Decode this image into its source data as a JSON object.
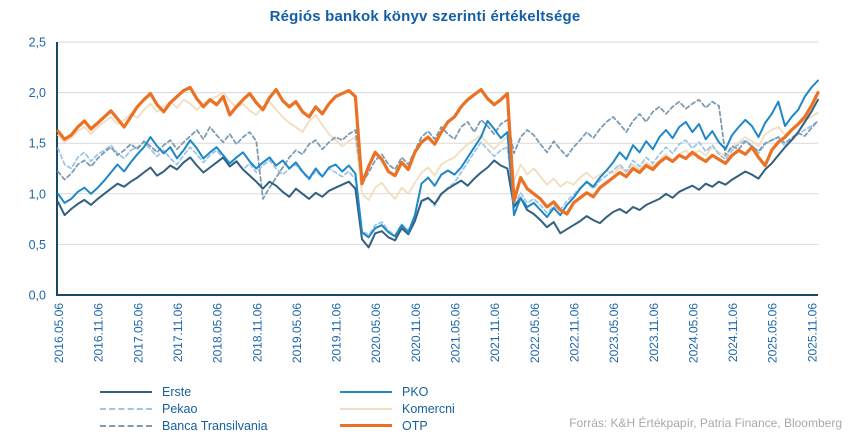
{
  "title": "Régiós bankok könyv szerinti értékeltsége",
  "source": "Forrás: K&H Értékpapír, Patria Finance, Bloomberg",
  "legend": {
    "columns": [
      [
        "Erste",
        "Pekao",
        "Banca Transilvania"
      ],
      [
        "PKO",
        "Komercni",
        "OTP"
      ]
    ]
  },
  "chart_data": {
    "type": "line",
    "title": "Régiós bankok könyv szerinti értékeltsége",
    "xlabel": "",
    "ylabel": "",
    "ylim": [
      0,
      2.5
    ],
    "grid": "horizontal",
    "grid_color": "#D9D9D9",
    "axis_color": "#1B4865",
    "tick_label_color": "#1E66A8",
    "legend_position": "bottom-left",
    "x_unit": "monthly values, 2016-05 through 2025-12",
    "y_ticks": [
      {
        "v": 0.0,
        "label": "0,0"
      },
      {
        "v": 0.5,
        "label": "0,5"
      },
      {
        "v": 1.0,
        "label": "1,0"
      },
      {
        "v": 1.5,
        "label": "1,5"
      },
      {
        "v": 2.0,
        "label": "2,0"
      },
      {
        "v": 2.5,
        "label": "2,5"
      }
    ],
    "x_tick_interval_months": 6,
    "x_tick_labels": [
      "2016.05.06",
      "2016.11.06",
      "2017.05.06",
      "2017.11.06",
      "2018.05.06",
      "2018.11.06",
      "2019.05.06",
      "2019.11.06",
      "2020.05.06",
      "2020.11.06",
      "2021.05.06",
      "2021.11.06",
      "2022.05.06",
      "2022.11.06",
      "2023.05.06",
      "2023.11.06",
      "2024.05.06",
      "2024.11.06",
      "2025.05.06",
      "2025.11.06"
    ],
    "draw_order": [
      4,
      1,
      2,
      0,
      3,
      5
    ],
    "series": [
      {
        "name": "Erste",
        "color": "#33607F",
        "style": "solid",
        "width": 2,
        "values": [
          0.92,
          0.79,
          0.85,
          0.9,
          0.94,
          0.89,
          0.95,
          1.0,
          1.05,
          1.1,
          1.07,
          1.12,
          1.16,
          1.21,
          1.26,
          1.18,
          1.22,
          1.28,
          1.24,
          1.31,
          1.36,
          1.28,
          1.21,
          1.26,
          1.31,
          1.36,
          1.27,
          1.32,
          1.24,
          1.18,
          1.12,
          1.05,
          1.12,
          1.08,
          1.02,
          0.97,
          1.05,
          1.0,
          0.95,
          1.01,
          0.97,
          1.03,
          1.06,
          1.09,
          1.12,
          1.05,
          0.55,
          0.47,
          0.61,
          0.63,
          0.57,
          0.54,
          0.66,
          0.6,
          0.73,
          0.93,
          0.96,
          0.9,
          1.0,
          1.05,
          1.09,
          1.13,
          1.08,
          1.15,
          1.21,
          1.26,
          1.33,
          1.28,
          1.25,
          0.87,
          0.96,
          0.84,
          0.8,
          0.74,
          0.67,
          0.72,
          0.61,
          0.65,
          0.69,
          0.73,
          0.78,
          0.74,
          0.71,
          0.77,
          0.82,
          0.85,
          0.81,
          0.87,
          0.84,
          0.89,
          0.92,
          0.95,
          1.0,
          0.96,
          1.02,
          1.05,
          1.08,
          1.04,
          1.1,
          1.07,
          1.12,
          1.09,
          1.14,
          1.18,
          1.22,
          1.19,
          1.15,
          1.24,
          1.3,
          1.38,
          1.46,
          1.53,
          1.61,
          1.71,
          1.81,
          1.93
        ]
      },
      {
        "name": "Pekao",
        "color": "#9EC6E6",
        "style": "dashed",
        "width": 1.8,
        "values": [
          1.45,
          1.29,
          1.25,
          1.36,
          1.41,
          1.32,
          1.39,
          1.43,
          1.48,
          1.4,
          1.35,
          1.43,
          1.46,
          1.51,
          1.44,
          1.37,
          1.43,
          1.35,
          1.29,
          1.38,
          1.46,
          1.39,
          1.31,
          1.38,
          1.43,
          1.35,
          1.27,
          1.33,
          1.24,
          1.3,
          1.21,
          1.28,
          1.33,
          1.25,
          1.19,
          1.25,
          1.29,
          1.21,
          1.14,
          1.22,
          1.17,
          1.25,
          1.21,
          1.17,
          1.22,
          1.14,
          0.64,
          0.59,
          0.69,
          0.72,
          0.64,
          0.59,
          0.7,
          0.64,
          0.76,
          0.91,
          0.96,
          0.88,
          0.99,
          1.06,
          1.11,
          1.21,
          1.31,
          1.41,
          1.51,
          1.44,
          1.37,
          1.43,
          1.46,
          0.89,
          1.01,
          0.91,
          0.95,
          0.89,
          0.81,
          0.88,
          0.84,
          0.93,
          0.99,
          1.06,
          1.11,
          1.05,
          1.13,
          1.18,
          1.23,
          1.29,
          1.22,
          1.33,
          1.27,
          1.36,
          1.3,
          1.39,
          1.46,
          1.4,
          1.49,
          1.53,
          1.45,
          1.51,
          1.42,
          1.48,
          1.39,
          1.34,
          1.43,
          1.49,
          1.53,
          1.48,
          1.4,
          1.49,
          1.53,
          1.56,
          1.47,
          1.53,
          1.59,
          1.63,
          1.67,
          1.72
        ]
      },
      {
        "name": "Banca Transilvania",
        "color": "#7D9CB4",
        "style": "dashed",
        "width": 1.8,
        "values": [
          1.22,
          1.14,
          1.2,
          1.29,
          1.33,
          1.27,
          1.35,
          1.41,
          1.46,
          1.38,
          1.43,
          1.49,
          1.44,
          1.52,
          1.47,
          1.41,
          1.48,
          1.53,
          1.44,
          1.51,
          1.57,
          1.63,
          1.54,
          1.66,
          1.58,
          1.51,
          1.59,
          1.49,
          1.56,
          1.61,
          1.52,
          0.95,
          1.06,
          1.16,
          1.26,
          1.36,
          1.43,
          1.39,
          1.49,
          1.53,
          1.44,
          1.51,
          1.56,
          1.53,
          1.59,
          1.63,
          1.1,
          1.21,
          1.33,
          1.39,
          1.29,
          1.24,
          1.36,
          1.29,
          1.43,
          1.56,
          1.62,
          1.54,
          1.66,
          1.59,
          1.54,
          1.66,
          1.71,
          1.61,
          1.73,
          1.67,
          1.59,
          1.69,
          1.73,
          1.4,
          1.56,
          1.63,
          1.58,
          1.49,
          1.41,
          1.52,
          1.44,
          1.37,
          1.46,
          1.53,
          1.61,
          1.55,
          1.64,
          1.71,
          1.76,
          1.69,
          1.61,
          1.72,
          1.79,
          1.71,
          1.81,
          1.86,
          1.79,
          1.86,
          1.91,
          1.84,
          1.89,
          1.93,
          1.85,
          1.91,
          1.87,
          1.38,
          1.47,
          1.44,
          1.52,
          1.47,
          1.42,
          1.5,
          1.53,
          1.56,
          1.5,
          1.55,
          1.6,
          1.57,
          1.65,
          1.72
        ]
      },
      {
        "name": "PKO",
        "color": "#1E88C7",
        "style": "solid",
        "width": 2,
        "values": [
          1.0,
          0.91,
          0.95,
          1.02,
          1.06,
          1.0,
          1.06,
          1.13,
          1.21,
          1.29,
          1.22,
          1.31,
          1.39,
          1.46,
          1.56,
          1.47,
          1.4,
          1.46,
          1.35,
          1.43,
          1.53,
          1.45,
          1.35,
          1.41,
          1.46,
          1.38,
          1.3,
          1.36,
          1.41,
          1.32,
          1.25,
          1.31,
          1.36,
          1.28,
          1.33,
          1.25,
          1.31,
          1.22,
          1.15,
          1.25,
          1.17,
          1.26,
          1.29,
          1.22,
          1.28,
          1.2,
          0.62,
          0.57,
          0.66,
          0.69,
          0.62,
          0.58,
          0.69,
          0.62,
          0.79,
          1.1,
          1.16,
          1.08,
          1.19,
          1.23,
          1.19,
          1.26,
          1.36,
          1.46,
          1.56,
          1.72,
          1.64,
          1.55,
          1.61,
          0.79,
          0.96,
          0.87,
          0.91,
          0.84,
          0.77,
          0.86,
          0.79,
          0.89,
          0.96,
          1.05,
          1.12,
          1.07,
          1.16,
          1.23,
          1.31,
          1.41,
          1.34,
          1.48,
          1.41,
          1.52,
          1.44,
          1.56,
          1.63,
          1.55,
          1.66,
          1.71,
          1.61,
          1.69,
          1.54,
          1.62,
          1.51,
          1.44,
          1.58,
          1.66,
          1.73,
          1.67,
          1.56,
          1.7,
          1.79,
          1.91,
          1.67,
          1.76,
          1.83,
          1.96,
          2.05,
          2.12
        ]
      },
      {
        "name": "Komercni",
        "color": "#F3DDC0",
        "style": "solid",
        "width": 1.8,
        "values": [
          1.58,
          1.51,
          1.55,
          1.62,
          1.66,
          1.59,
          1.66,
          1.71,
          1.76,
          1.69,
          1.73,
          1.79,
          1.75,
          1.83,
          1.89,
          1.81,
          1.86,
          1.91,
          1.85,
          1.93,
          1.89,
          1.83,
          1.89,
          1.93,
          1.96,
          2.0,
          1.92,
          1.85,
          1.89,
          1.82,
          1.78,
          1.86,
          1.91,
          1.83,
          1.76,
          1.7,
          1.66,
          1.61,
          1.72,
          1.78,
          1.68,
          1.59,
          1.53,
          1.47,
          1.52,
          1.56,
          1.0,
          0.94,
          1.06,
          1.11,
          1.02,
          0.95,
          1.06,
          1.0,
          1.11,
          1.21,
          1.26,
          1.18,
          1.29,
          1.33,
          1.36,
          1.43,
          1.49,
          1.53,
          1.58,
          1.5,
          1.44,
          1.51,
          1.56,
          1.13,
          1.29,
          1.19,
          1.25,
          1.17,
          1.09,
          1.15,
          1.07,
          1.12,
          1.09,
          1.16,
          1.21,
          1.15,
          1.19,
          1.23,
          1.2,
          1.26,
          1.21,
          1.29,
          1.24,
          1.31,
          1.27,
          1.33,
          1.39,
          1.32,
          1.39,
          1.43,
          1.37,
          1.43,
          1.38,
          1.46,
          1.41,
          1.37,
          1.46,
          1.51,
          1.56,
          1.52,
          1.47,
          1.59,
          1.63,
          1.66,
          1.58,
          1.63,
          1.69,
          1.73,
          1.76,
          1.8
        ]
      },
      {
        "name": "OTP",
        "color": "#EB7125",
        "style": "solid",
        "width": 3.2,
        "values": [
          1.62,
          1.54,
          1.58,
          1.66,
          1.72,
          1.64,
          1.7,
          1.76,
          1.82,
          1.74,
          1.66,
          1.76,
          1.86,
          1.93,
          1.99,
          1.88,
          1.81,
          1.9,
          1.96,
          2.02,
          2.05,
          1.94,
          1.86,
          1.93,
          1.88,
          1.96,
          1.78,
          1.86,
          1.93,
          1.99,
          1.9,
          1.83,
          1.95,
          2.03,
          1.92,
          1.86,
          1.91,
          1.81,
          1.76,
          1.86,
          1.79,
          1.89,
          1.96,
          1.99,
          2.02,
          1.96,
          1.1,
          1.27,
          1.41,
          1.34,
          1.22,
          1.18,
          1.31,
          1.24,
          1.41,
          1.51,
          1.56,
          1.49,
          1.61,
          1.71,
          1.76,
          1.86,
          1.93,
          1.98,
          2.03,
          1.94,
          1.88,
          1.93,
          1.99,
          0.93,
          1.16,
          1.05,
          1.0,
          0.95,
          0.87,
          0.92,
          0.84,
          0.8,
          0.91,
          0.96,
          1.01,
          0.97,
          1.06,
          1.11,
          1.16,
          1.21,
          1.17,
          1.25,
          1.21,
          1.28,
          1.24,
          1.31,
          1.36,
          1.32,
          1.38,
          1.35,
          1.41,
          1.36,
          1.32,
          1.38,
          1.34,
          1.3,
          1.38,
          1.43,
          1.39,
          1.46,
          1.36,
          1.28,
          1.43,
          1.51,
          1.56,
          1.63,
          1.69,
          1.76,
          1.87,
          2.0
        ]
      }
    ]
  }
}
